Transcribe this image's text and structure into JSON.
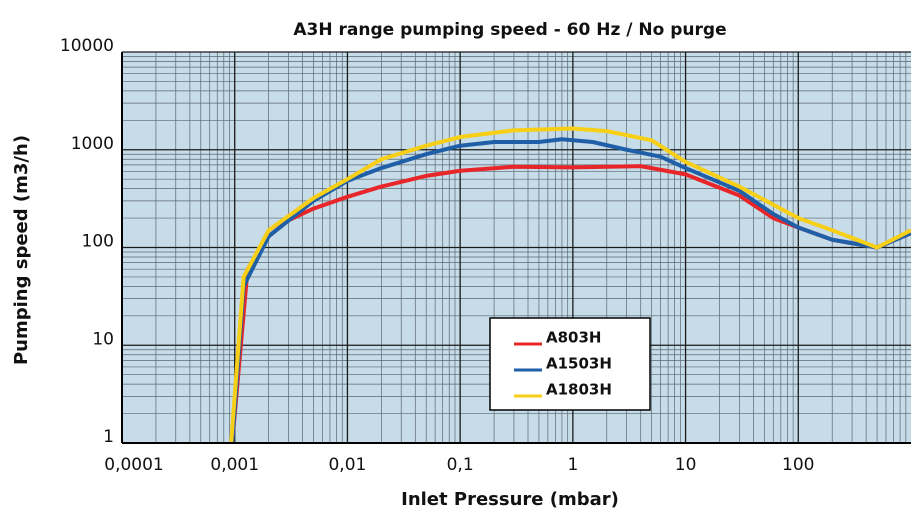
{
  "chart_data": {
    "type": "line",
    "title": "A3H range pumping speed - 60 Hz / No purge",
    "x_label": "Inlet Pressure (mbar)",
    "y_label": "Pumping speed (m3/h)",
    "log_x": true,
    "log_y": true,
    "grid": true,
    "legend": "center",
    "xlim": [
      0.0001,
      1000
    ],
    "ylim": [
      1,
      10000
    ],
    "xticks": [
      {
        "value": 0.0001,
        "label": "0,0001"
      },
      {
        "value": 0.001,
        "label": "0,001"
      },
      {
        "value": 0.01,
        "label": "0,01"
      },
      {
        "value": 0.1,
        "label": "0,1"
      },
      1,
      10,
      100
    ],
    "yticks": [
      1,
      10,
      100,
      1000,
      10000
    ],
    "series": [
      {
        "name": "A803H",
        "color": "#e8262a",
        "x": [
          0.00095,
          0.0013,
          0.002,
          0.003,
          0.005,
          0.01,
          0.02,
          0.05,
          0.1,
          0.3,
          1,
          2,
          4,
          10,
          30,
          60,
          100,
          200,
          500,
          1000
        ],
        "values": [
          1,
          60,
          130,
          190,
          250,
          330,
          420,
          540,
          610,
          670,
          660,
          670,
          680,
          560,
          340,
          200,
          160,
          120,
          100,
          140
        ]
      },
      {
        "name": "A1503H",
        "color": "#1f5fa8",
        "x": [
          0.00095,
          0.0012,
          0.002,
          0.005,
          0.01,
          0.02,
          0.05,
          0.1,
          0.2,
          0.5,
          0.8,
          1.5,
          3,
          6,
          10,
          30,
          60,
          100,
          200,
          500,
          1000
        ],
        "values": [
          1,
          40,
          130,
          300,
          480,
          650,
          900,
          1100,
          1200,
          1200,
          1280,
          1200,
          1000,
          850,
          650,
          380,
          220,
          160,
          120,
          100,
          140
        ]
      },
      {
        "name": "A1803H",
        "color": "#f7cf17",
        "x": [
          0.00093,
          0.0012,
          0.002,
          0.005,
          0.01,
          0.02,
          0.05,
          0.1,
          0.3,
          1,
          2,
          5,
          10,
          30,
          100,
          200,
          500,
          1000
        ],
        "values": [
          1,
          50,
          150,
          320,
          500,
          800,
          1100,
          1350,
          1580,
          1650,
          1550,
          1250,
          750,
          420,
          200,
          150,
          100,
          150
        ]
      }
    ]
  }
}
